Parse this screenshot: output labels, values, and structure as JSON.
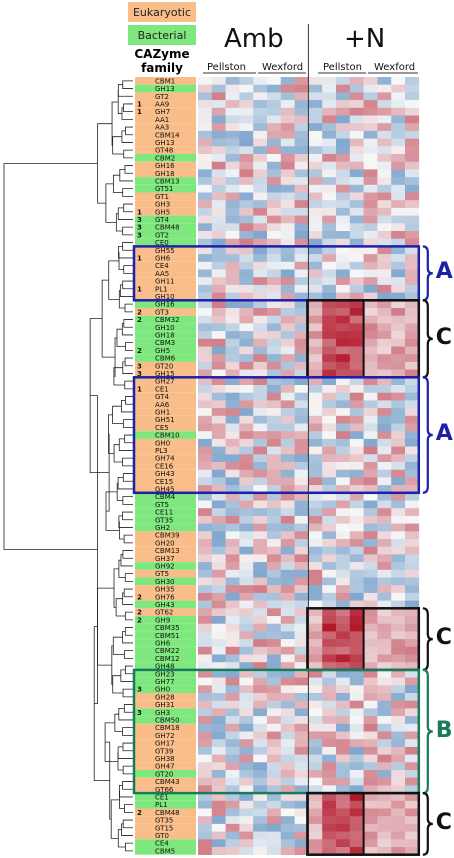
{
  "legend": {
    "eukaryotic": "Eukaryotic",
    "bacterial": "Bacterial",
    "family_title": "CAZyme\nfamily"
  },
  "colors": {
    "eukaryotic": "#f9bd8a",
    "bacterial": "#7ee87f",
    "A": "#1c21a8",
    "B": "#1a7a5c",
    "C": "#111111",
    "high": "#b2182b",
    "low": "#2166ac"
  },
  "chart_data": {
    "type": "heatmap",
    "treatments": [
      "Amb",
      "+N"
    ],
    "sites": [
      "Pellston",
      "Wexford",
      "Pellston",
      "Wexford"
    ],
    "rows": [
      {
        "f": "CBM1",
        "t": "E",
        "n": ""
      },
      {
        "f": "GH13",
        "t": "B",
        "n": ""
      },
      {
        "f": "GT2",
        "t": "E",
        "n": ""
      },
      {
        "f": "AA9",
        "t": "E",
        "n": "1"
      },
      {
        "f": "GH7",
        "t": "E",
        "n": "1"
      },
      {
        "f": "AA1",
        "t": "E",
        "n": ""
      },
      {
        "f": "AA3",
        "t": "E",
        "n": ""
      },
      {
        "f": "CBM14",
        "t": "E",
        "n": ""
      },
      {
        "f": "GH13",
        "t": "E",
        "n": ""
      },
      {
        "f": "GT48",
        "t": "E",
        "n": ""
      },
      {
        "f": "CBM2",
        "t": "B",
        "n": ""
      },
      {
        "f": "GH16",
        "t": "E",
        "n": ""
      },
      {
        "f": "GH18",
        "t": "E",
        "n": ""
      },
      {
        "f": "CBM13",
        "t": "B",
        "n": ""
      },
      {
        "f": "GT51",
        "t": "B",
        "n": ""
      },
      {
        "f": "GT1",
        "t": "E",
        "n": ""
      },
      {
        "f": "GH3",
        "t": "E",
        "n": ""
      },
      {
        "f": "GH5",
        "t": "E",
        "n": "1"
      },
      {
        "f": "GT4",
        "t": "B",
        "n": "3"
      },
      {
        "f": "CBM48",
        "t": "B",
        "n": "3"
      },
      {
        "f": "GT2",
        "t": "B",
        "n": "3"
      },
      {
        "f": "CE0",
        "t": "B",
        "n": ""
      },
      {
        "f": "GH55",
        "t": "E",
        "n": ""
      },
      {
        "f": "GH6",
        "t": "E",
        "n": "1"
      },
      {
        "f": "CE4",
        "t": "E",
        "n": ""
      },
      {
        "f": "AA5",
        "t": "E",
        "n": ""
      },
      {
        "f": "GH11",
        "t": "E",
        "n": ""
      },
      {
        "f": "PL1",
        "t": "E",
        "n": "1"
      },
      {
        "f": "GH10",
        "t": "E",
        "n": ""
      },
      {
        "f": "GH16",
        "t": "B",
        "n": ""
      },
      {
        "f": "GT3",
        "t": "E",
        "n": "2"
      },
      {
        "f": "CBM32",
        "t": "B",
        "n": "2"
      },
      {
        "f": "GH10",
        "t": "B",
        "n": ""
      },
      {
        "f": "GH18",
        "t": "B",
        "n": ""
      },
      {
        "f": "CBM3",
        "t": "B",
        "n": ""
      },
      {
        "f": "GH5",
        "t": "B",
        "n": "2"
      },
      {
        "f": "CBM6",
        "t": "B",
        "n": ""
      },
      {
        "f": "GT20",
        "t": "E",
        "n": "3"
      },
      {
        "f": "GH15",
        "t": "E",
        "n": "3"
      },
      {
        "f": "GH27",
        "t": "E",
        "n": ""
      },
      {
        "f": "CE1",
        "t": "E",
        "n": "1"
      },
      {
        "f": "GT4",
        "t": "E",
        "n": ""
      },
      {
        "f": "AA6",
        "t": "E",
        "n": ""
      },
      {
        "f": "GH1",
        "t": "E",
        "n": ""
      },
      {
        "f": "GH51",
        "t": "E",
        "n": ""
      },
      {
        "f": "CE5",
        "t": "E",
        "n": ""
      },
      {
        "f": "CBM10",
        "t": "B",
        "n": ""
      },
      {
        "f": "GH0",
        "t": "E",
        "n": ""
      },
      {
        "f": "PL3",
        "t": "E",
        "n": ""
      },
      {
        "f": "GH74",
        "t": "E",
        "n": ""
      },
      {
        "f": "CE16",
        "t": "E",
        "n": ""
      },
      {
        "f": "GH43",
        "t": "E",
        "n": ""
      },
      {
        "f": "CE15",
        "t": "E",
        "n": ""
      },
      {
        "f": "GH45",
        "t": "E",
        "n": ""
      },
      {
        "f": "CBM4",
        "t": "B",
        "n": ""
      },
      {
        "f": "GT5",
        "t": "B",
        "n": ""
      },
      {
        "f": "CE11",
        "t": "B",
        "n": ""
      },
      {
        "f": "GT35",
        "t": "B",
        "n": ""
      },
      {
        "f": "GH2",
        "t": "B",
        "n": ""
      },
      {
        "f": "CBM39",
        "t": "E",
        "n": ""
      },
      {
        "f": "GH20",
        "t": "E",
        "n": ""
      },
      {
        "f": "CBM13",
        "t": "E",
        "n": ""
      },
      {
        "f": "GH37",
        "t": "E",
        "n": ""
      },
      {
        "f": "GH92",
        "t": "B",
        "n": ""
      },
      {
        "f": "GT5",
        "t": "E",
        "n": ""
      },
      {
        "f": "GH30",
        "t": "B",
        "n": ""
      },
      {
        "f": "GH35",
        "t": "E",
        "n": ""
      },
      {
        "f": "GH76",
        "t": "E",
        "n": "2"
      },
      {
        "f": "GH43",
        "t": "B",
        "n": ""
      },
      {
        "f": "GT62",
        "t": "E",
        "n": "2"
      },
      {
        "f": "GH9",
        "t": "B",
        "n": "2"
      },
      {
        "f": "CBM35",
        "t": "B",
        "n": ""
      },
      {
        "f": "CBM51",
        "t": "B",
        "n": ""
      },
      {
        "f": "GH6",
        "t": "B",
        "n": ""
      },
      {
        "f": "CBM22",
        "t": "B",
        "n": ""
      },
      {
        "f": "CBM12",
        "t": "B",
        "n": ""
      },
      {
        "f": "GH48",
        "t": "B",
        "n": ""
      },
      {
        "f": "GH23",
        "t": "B",
        "n": ""
      },
      {
        "f": "GH77",
        "t": "B",
        "n": ""
      },
      {
        "f": "GH0",
        "t": "B",
        "n": "3"
      },
      {
        "f": "GH28",
        "t": "E",
        "n": ""
      },
      {
        "f": "GH31",
        "t": "E",
        "n": ""
      },
      {
        "f": "GH3",
        "t": "B",
        "n": "3"
      },
      {
        "f": "CBM50",
        "t": "B",
        "n": ""
      },
      {
        "f": "CBM18",
        "t": "E",
        "n": ""
      },
      {
        "f": "GH72",
        "t": "E",
        "n": ""
      },
      {
        "f": "GH17",
        "t": "E",
        "n": ""
      },
      {
        "f": "GT39",
        "t": "E",
        "n": ""
      },
      {
        "f": "GH38",
        "t": "E",
        "n": ""
      },
      {
        "f": "GH47",
        "t": "E",
        "n": ""
      },
      {
        "f": "GT20",
        "t": "B",
        "n": ""
      },
      {
        "f": "CBM43",
        "t": "E",
        "n": ""
      },
      {
        "f": "GT66",
        "t": "E",
        "n": ""
      },
      {
        "f": "CE1",
        "t": "B",
        "n": ""
      },
      {
        "f": "PL1",
        "t": "B",
        "n": ""
      },
      {
        "f": "CBM48",
        "t": "E",
        "n": "2"
      },
      {
        "f": "GT35",
        "t": "E",
        "n": ""
      },
      {
        "f": "GT15",
        "t": "E",
        "n": ""
      },
      {
        "f": "GT0",
        "t": "E",
        "n": ""
      },
      {
        "f": "CE4",
        "t": "B",
        "n": ""
      },
      {
        "f": "CBM5",
        "t": "B",
        "n": ""
      }
    ],
    "boxes": [
      {
        "label": "A",
        "cols": [
          0,
          15
        ],
        "rows": [
          22,
          28
        ]
      },
      {
        "label": "C",
        "cols": [
          8,
          15
        ],
        "rows": [
          29,
          38
        ]
      },
      {
        "label": "A",
        "cols": [
          0,
          15
        ],
        "rows": [
          39,
          53
        ]
      },
      {
        "label": "C",
        "cols": [
          8,
          15
        ],
        "rows": [
          69,
          76
        ]
      },
      {
        "label": "B",
        "cols": [
          0,
          15
        ],
        "rows": [
          77,
          92
        ]
      },
      {
        "label": "C",
        "cols": [
          8,
          15
        ],
        "rows": [
          93,
          100
        ]
      }
    ]
  }
}
